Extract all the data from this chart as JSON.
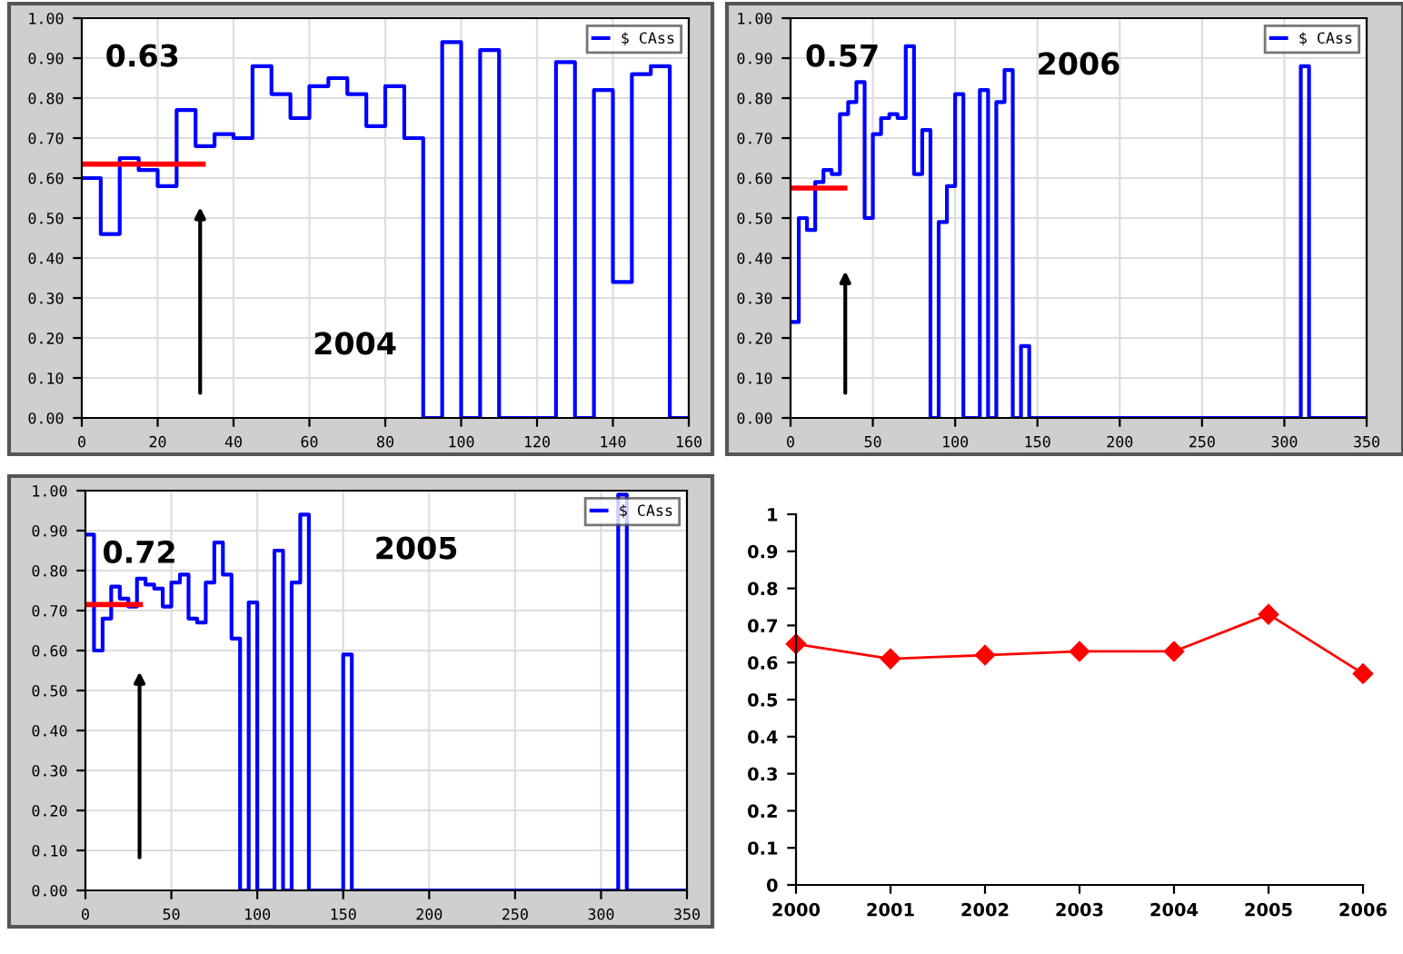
{
  "chart_data": [
    {
      "type": "step",
      "xlim": [
        0,
        160
      ],
      "xticks": [
        0,
        20,
        40,
        60,
        80,
        100,
        120,
        140,
        160
      ],
      "ylim": [
        0,
        1
      ],
      "yticks": [
        {
          "value": 0,
          "label": "0.00"
        },
        {
          "value": 0.1,
          "label": "0.10"
        },
        {
          "value": 0.2,
          "label": "0.20"
        },
        {
          "value": 0.3,
          "label": "0.30"
        },
        {
          "value": 0.4,
          "label": "0.40"
        },
        {
          "value": 0.5,
          "label": "0.50"
        },
        {
          "value": 0.6,
          "label": "0.60"
        },
        {
          "value": 0.7,
          "label": "0.70"
        },
        {
          "value": 0.8,
          "label": "0.80"
        },
        {
          "value": 0.9,
          "label": "0.90"
        },
        {
          "value": 1,
          "label": "1.00"
        }
      ],
      "grid": true,
      "legend": "top right",
      "series": [
        {
          "name": "$ CAss",
          "color": "#0000ff",
          "x": [
            0,
            5,
            10,
            15,
            20,
            25,
            30,
            35,
            40,
            45,
            50,
            55,
            60,
            65,
            70,
            75,
            80,
            85,
            90,
            95,
            100,
            105,
            110,
            115,
            120,
            125,
            130,
            135,
            140,
            145,
            150,
            155,
            160
          ],
          "values": [
            0.6,
            0.46,
            0.65,
            0.62,
            0.58,
            0.77,
            0.68,
            0.71,
            0.7,
            0.88,
            0.81,
            0.75,
            0.83,
            0.85,
            0.81,
            0.73,
            0.83,
            0.7,
            0,
            0.94,
            0,
            0.92,
            0,
            0,
            0,
            0.89,
            0,
            0.82,
            0.34,
            0.86,
            0.88,
            0,
            0
          ]
        },
        {
          "type": "line",
          "color": "#ff0000",
          "x": [
            0,
            32
          ],
          "values": [
            0.635,
            0.635
          ]
        }
      ],
      "annotations": [
        "0.63",
        "2004"
      ]
    },
    {
      "type": "step",
      "xlim": [
        0,
        350
      ],
      "xticks": [
        0,
        50,
        100,
        150,
        200,
        250,
        300,
        350
      ],
      "ylim": [
        0,
        1
      ],
      "yticks": [
        {
          "value": 0,
          "label": "0.00"
        },
        {
          "value": 0.1,
          "label": "0.10"
        },
        {
          "value": 0.2,
          "label": "0.20"
        },
        {
          "value": 0.3,
          "label": "0.30"
        },
        {
          "value": 0.4,
          "label": "0.40"
        },
        {
          "value": 0.5,
          "label": "0.50"
        },
        {
          "value": 0.6,
          "label": "0.60"
        },
        {
          "value": 0.7,
          "label": "0.70"
        },
        {
          "value": 0.8,
          "label": "0.80"
        },
        {
          "value": 0.9,
          "label": "0.90"
        },
        {
          "value": 1,
          "label": "1.00"
        }
      ],
      "grid": true,
      "legend": "top right",
      "series": [
        {
          "name": "$ CAss",
          "color": "#0000ff",
          "x": [
            0,
            5,
            10,
            15,
            20,
            25,
            30,
            35,
            40,
            45,
            50,
            55,
            60,
            65,
            70,
            75,
            80,
            85,
            90,
            95,
            100,
            105,
            110,
            115,
            120,
            125,
            130,
            135,
            140,
            145,
            310,
            315,
            350
          ],
          "values": [
            0.24,
            0.5,
            0.47,
            0.59,
            0.62,
            0.61,
            0.76,
            0.79,
            0.84,
            0.5,
            0.71,
            0.75,
            0.76,
            0.75,
            0.93,
            0.61,
            0.72,
            0,
            0.49,
            0.58,
            0.81,
            0,
            0,
            0.82,
            0,
            0.79,
            0.87,
            0,
            0.18,
            0,
            0.88,
            0,
            0
          ]
        },
        {
          "type": "line",
          "color": "#ff0000",
          "x": [
            0,
            33
          ],
          "values": [
            0.575,
            0.575
          ]
        }
      ],
      "annotations": [
        "0.57",
        "2006"
      ]
    },
    {
      "type": "step",
      "xlim": [
        0,
        350
      ],
      "xticks": [
        0,
        50,
        100,
        150,
        200,
        250,
        300,
        350
      ],
      "ylim": [
        0,
        1
      ],
      "yticks": [
        {
          "value": 0,
          "label": "0.00"
        },
        {
          "value": 0.1,
          "label": "0.10"
        },
        {
          "value": 0.2,
          "label": "0.20"
        },
        {
          "value": 0.3,
          "label": "0.30"
        },
        {
          "value": 0.4,
          "label": "0.40"
        },
        {
          "value": 0.5,
          "label": "0.50"
        },
        {
          "value": 0.6,
          "label": "0.60"
        },
        {
          "value": 0.7,
          "label": "0.70"
        },
        {
          "value": 0.8,
          "label": "0.80"
        },
        {
          "value": 0.9,
          "label": "0.90"
        },
        {
          "value": 1,
          "label": "1.00"
        }
      ],
      "grid": true,
      "legend": "top right",
      "series": [
        {
          "name": "$ CAss",
          "color": "#0000ff",
          "x": [
            0,
            5,
            10,
            15,
            20,
            25,
            30,
            35,
            40,
            45,
            50,
            55,
            60,
            65,
            70,
            75,
            80,
            85,
            90,
            95,
            100,
            105,
            110,
            115,
            120,
            125,
            130,
            135,
            150,
            155,
            310,
            315,
            350
          ],
          "values": [
            0.89,
            0.6,
            0.68,
            0.76,
            0.73,
            0.71,
            0.78,
            0.765,
            0.755,
            0.71,
            0.77,
            0.79,
            0.68,
            0.67,
            0.77,
            0.87,
            0.79,
            0.63,
            0,
            0.72,
            0,
            0,
            0.85,
            0,
            0.77,
            0.94,
            0,
            0,
            0.59,
            0,
            0.99,
            0,
            0
          ]
        },
        {
          "type": "line",
          "color": "#ff0000",
          "x": [
            0,
            32
          ],
          "values": [
            0.715,
            0.715
          ]
        }
      ],
      "annotations": [
        "0.72",
        "2005"
      ]
    },
    {
      "type": "line",
      "categories": [
        "2000",
        "2001",
        "2002",
        "2003",
        "2004",
        "2005",
        "2006"
      ],
      "ylim": [
        0,
        1
      ],
      "yticks": [
        0,
        0.1,
        0.2,
        0.3,
        0.4,
        0.5,
        0.6,
        0.7,
        0.8,
        0.9,
        1
      ],
      "marker": "diamond",
      "series": [
        {
          "color": "#ff0000",
          "values": [
            0.65,
            0.61,
            0.62,
            0.63,
            0.63,
            0.73,
            0.57
          ]
        }
      ]
    }
  ]
}
